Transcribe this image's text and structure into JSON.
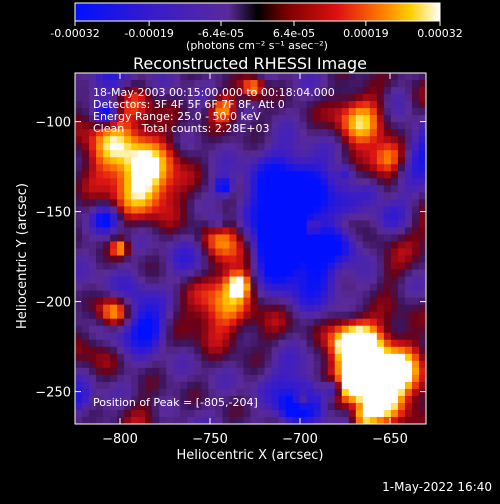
{
  "colorbar": {
    "tick_labels": [
      "-0.00032",
      "-0.00019",
      "-6.4e-05",
      "6.4e-05",
      "0.00019",
      "0.00032"
    ],
    "tick_values": [
      -0.00032,
      -0.00019,
      -6.4e-05,
      6.4e-05,
      0.00019,
      0.00032
    ],
    "range": [
      -0.00032,
      0.00032
    ],
    "unit_label": "(photons cm⁻² s⁻¹ asec⁻²)"
  },
  "chart_data": {
    "type": "heatmap",
    "title": "Reconstructed RHESSI Image",
    "xlabel": "Heliocentric X (arcsec)",
    "ylabel": "Heliocentric Y (arcsec)",
    "xlim": [
      -825,
      -630
    ],
    "ylim": [
      -268,
      -73
    ],
    "x_ticks": [
      -800,
      -750,
      -700,
      -650
    ],
    "x_tick_labels": [
      "−800",
      "−750",
      "−700",
      "−650"
    ],
    "y_ticks": [
      -100,
      -150,
      -200,
      -250
    ],
    "y_tick_labels": [
      "−100",
      "−150",
      "−200",
      "−250"
    ],
    "annotations": [
      "18-May-2003 00:15:00.000 to 00:18:04.000",
      "Detectors: 3F 4F 5F 6F 7F 8F, Att 0",
      "Energy Range: 25.0 - 50.0 keV",
      "Clean     Total counts: 2.28E+03"
    ],
    "peak_label": "Position of Peak = [-805,-204]",
    "peak_position": [
      -805,
      -204
    ]
  },
  "footer": {
    "timestamp": "1-May-2022 16:40"
  }
}
